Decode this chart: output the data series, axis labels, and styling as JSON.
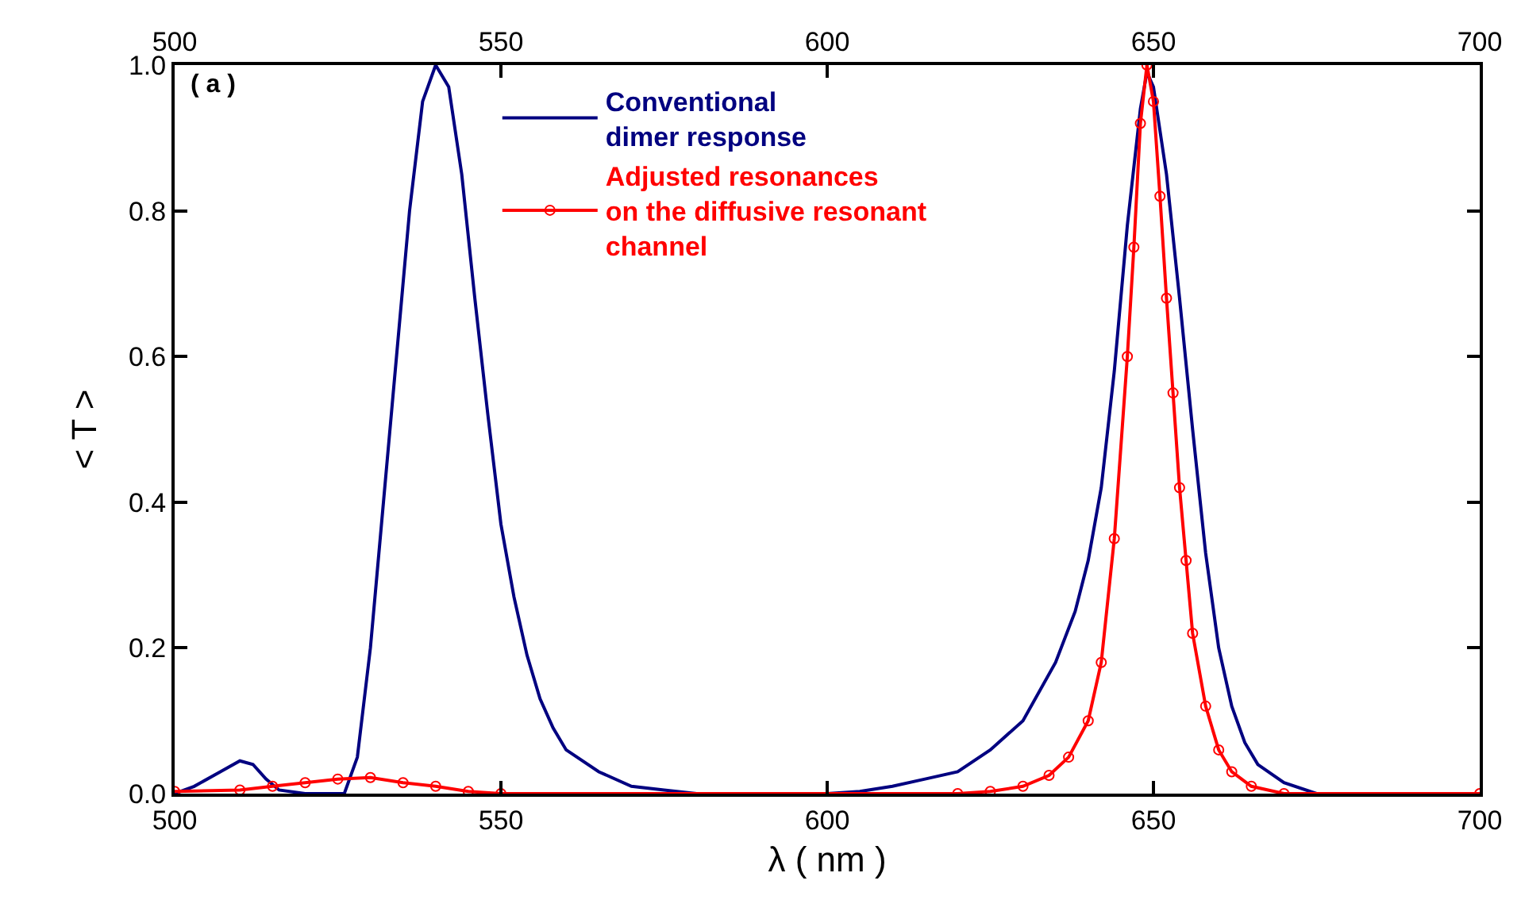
{
  "chart_data": {
    "type": "line",
    "xlabel": "λ ( nm )",
    "ylabel": "< T >",
    "annotations": [
      "( a )"
    ],
    "xlim": [
      500,
      700
    ],
    "xticks": [
      500,
      550,
      600,
      650,
      700
    ],
    "x2lim": [
      500,
      700
    ],
    "x2ticks": [
      500,
      550,
      600,
      650,
      700
    ],
    "ylim": [
      0,
      1.0
    ],
    "yticks": [
      {
        "value": 0,
        "label": "0.0"
      },
      {
        "value": 0.2,
        "label": "0.2"
      },
      {
        "value": 0.4,
        "label": "0.4"
      },
      {
        "value": 0.6,
        "label": "0.6"
      },
      {
        "value": 0.8,
        "label": "0.8"
      },
      {
        "value": 1.0,
        "label": "1.0"
      }
    ],
    "grid": false,
    "legend": "top",
    "series": [
      {
        "name": "Conventional\ndimer response",
        "color": "#000080",
        "marker": "none",
        "x": [
          500,
          503,
          507,
          510,
          512,
          514,
          516,
          520,
          526,
          528,
          530,
          532,
          534,
          536,
          538,
          540,
          542,
          544,
          546,
          548,
          550,
          552,
          554,
          556,
          558,
          560,
          565,
          570,
          575,
          580,
          600,
          605,
          610,
          615,
          620,
          625,
          630,
          635,
          638,
          640,
          642,
          644,
          646,
          648,
          649,
          650,
          652,
          654,
          656,
          658,
          660,
          662,
          664,
          666,
          670,
          675,
          700
        ],
        "values": [
          0,
          0.01,
          0.03,
          0.045,
          0.04,
          0.02,
          0.005,
          0,
          0,
          0.05,
          0.2,
          0.4,
          0.6,
          0.8,
          0.95,
          1.0,
          0.97,
          0.85,
          0.68,
          0.52,
          0.37,
          0.27,
          0.19,
          0.13,
          0.09,
          0.06,
          0.03,
          0.01,
          0.005,
          0,
          0,
          0.003,
          0.01,
          0.02,
          0.03,
          0.06,
          0.1,
          0.18,
          0.25,
          0.32,
          0.42,
          0.58,
          0.78,
          0.94,
          0.99,
          0.97,
          0.85,
          0.68,
          0.5,
          0.33,
          0.2,
          0.12,
          0.07,
          0.04,
          0.015,
          0,
          0
        ]
      },
      {
        "name": "Adjusted resonances\non the diffusive resonant\nchannel",
        "color": "#ff0000",
        "marker": "circle",
        "x": [
          500,
          510,
          515,
          520,
          525,
          530,
          535,
          540,
          545,
          550,
          620,
          625,
          630,
          634,
          637,
          640,
          642,
          644,
          646,
          647,
          648,
          649,
          650,
          651,
          652,
          653,
          654,
          655,
          656,
          658,
          660,
          662,
          665,
          670,
          700
        ],
        "values": [
          0.003,
          0.005,
          0.01,
          0.015,
          0.02,
          0.022,
          0.015,
          0.01,
          0.003,
          0,
          0,
          0.003,
          0.01,
          0.025,
          0.05,
          0.1,
          0.18,
          0.35,
          0.6,
          0.75,
          0.92,
          1.0,
          0.95,
          0.82,
          0.68,
          0.55,
          0.42,
          0.32,
          0.22,
          0.12,
          0.06,
          0.03,
          0.01,
          0,
          0
        ]
      }
    ]
  }
}
